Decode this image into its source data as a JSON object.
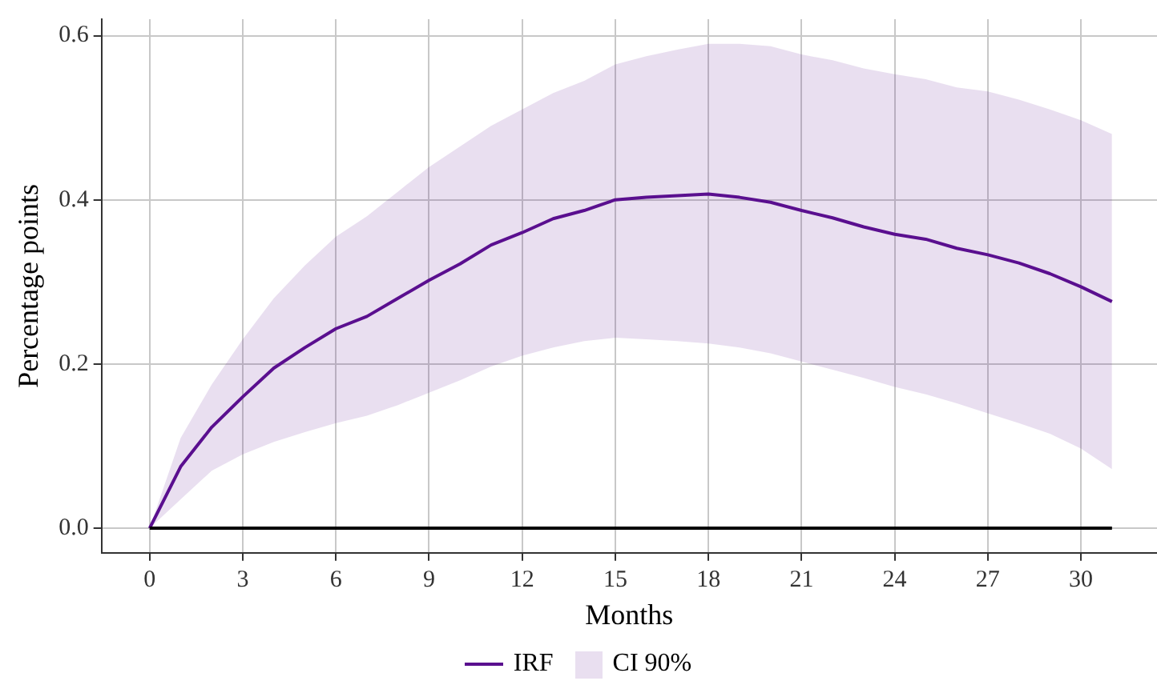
{
  "chart_data": {
    "type": "line",
    "xlabel": "Months",
    "ylabel": "Percentage points",
    "x": [
      0,
      1,
      2,
      3,
      4,
      5,
      6,
      7,
      8,
      9,
      10,
      11,
      12,
      13,
      14,
      15,
      16,
      17,
      18,
      19,
      20,
      21,
      22,
      23,
      24,
      25,
      26,
      27,
      28,
      29,
      30,
      31
    ],
    "series": [
      {
        "name": "IRF",
        "color": "#5a0f8f",
        "values": [
          0,
          0.075,
          0.123,
          0.16,
          0.195,
          0.22,
          0.243,
          0.258,
          0.28,
          0.302,
          0.322,
          0.345,
          0.36,
          0.377,
          0.387,
          0.4,
          0.403,
          0.405,
          0.407,
          0.403,
          0.397,
          0.387,
          0.378,
          0.367,
          0.358,
          0.352,
          0.341,
          0.333,
          0.323,
          0.31,
          0.294,
          0.276
        ],
        "lower": [
          0,
          0.035,
          0.07,
          0.09,
          0.105,
          0.117,
          0.128,
          0.137,
          0.15,
          0.165,
          0.18,
          0.197,
          0.21,
          0.22,
          0.228,
          0.232,
          0.23,
          0.228,
          0.225,
          0.22,
          0.213,
          0.203,
          0.193,
          0.183,
          0.172,
          0.163,
          0.152,
          0.14,
          0.128,
          0.115,
          0.097,
          0.072
        ],
        "upper": [
          0,
          0.11,
          0.175,
          0.23,
          0.28,
          0.32,
          0.355,
          0.38,
          0.41,
          0.44,
          0.465,
          0.49,
          0.51,
          0.53,
          0.545,
          0.565,
          0.575,
          0.583,
          0.59,
          0.59,
          0.587,
          0.577,
          0.57,
          0.56,
          0.553,
          0.547,
          0.537,
          0.532,
          0.522,
          0.51,
          0.497,
          0.48
        ]
      }
    ],
    "annotations": [
      "CI 90%"
    ],
    "ref_lines": [
      {
        "axis": "y",
        "value": 0,
        "color": "#000000"
      }
    ],
    "xlim": [
      -1.55,
      32.45
    ],
    "xticks": [
      0,
      3,
      6,
      9,
      12,
      15,
      18,
      21,
      24,
      27,
      30
    ],
    "ylim": [
      -0.03,
      0.62
    ],
    "yticks": [
      {
        "value": 0,
        "label": "0.0"
      },
      {
        "value": 0.2,
        "label": "0.2"
      },
      {
        "value": 0.4,
        "label": "0.4"
      },
      {
        "value": 0.6,
        "label": "0.6"
      }
    ],
    "grid": true,
    "legend": "bottom",
    "marker": "none",
    "line_style": "solid"
  }
}
